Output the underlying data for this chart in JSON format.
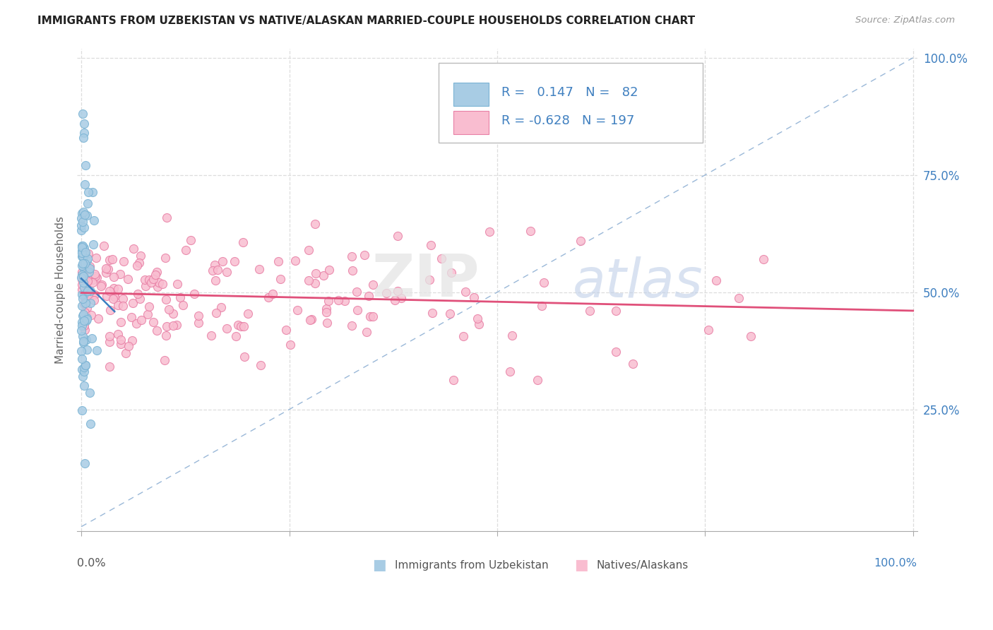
{
  "title": "IMMIGRANTS FROM UZBEKISTAN VS NATIVE/ALASKAN MARRIED-COUPLE HOUSEHOLDS CORRELATION CHART",
  "source": "Source: ZipAtlas.com",
  "ylabel": "Married-couple Households",
  "R1": 0.147,
  "N1": 82,
  "R2": -0.628,
  "N2": 197,
  "color_blue_fill": "#a8cce4",
  "color_blue_edge": "#7ab3d4",
  "color_blue_line": "#3a7fc1",
  "color_pink_fill": "#f9bdd0",
  "color_pink_edge": "#e87fa5",
  "color_pink_line": "#e0507a",
  "legend1_label": "Immigrants from Uzbekistan",
  "legend2_label": "Natives/Alaskans",
  "legend_text_color": "#4080c0",
  "grid_color": "#dddddd",
  "title_color": "#222222",
  "diag_color": "#9ab8d8",
  "right_tick_color": "#4080c0"
}
